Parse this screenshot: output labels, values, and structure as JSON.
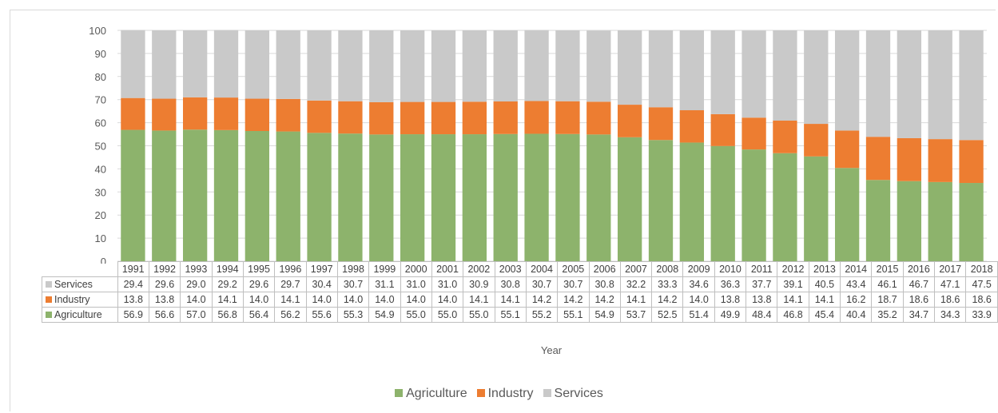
{
  "chart_data": {
    "type": "stacked-bar",
    "categories": [
      "1991",
      "1992",
      "1993",
      "1994",
      "1995",
      "1996",
      "1997",
      "1998",
      "1999",
      "2000",
      "2001",
      "2002",
      "2003",
      "2004",
      "2005",
      "2006",
      "2007",
      "2008",
      "2009",
      "2010",
      "2011",
      "2012",
      "2013",
      "2014",
      "2015",
      "2016",
      "2017",
      "2018"
    ],
    "series": [
      {
        "name": "Agriculture",
        "color": "#8db36c",
        "values": [
          56.9,
          56.6,
          57.0,
          56.8,
          56.4,
          56.2,
          55.6,
          55.3,
          54.9,
          55.0,
          55.0,
          55.0,
          55.1,
          55.2,
          55.1,
          54.9,
          53.7,
          52.5,
          51.4,
          49.9,
          48.4,
          46.8,
          45.4,
          40.4,
          35.2,
          34.7,
          34.3,
          33.9
        ]
      },
      {
        "name": "Industry",
        "color": "#ed7d31",
        "values": [
          13.8,
          13.8,
          14.0,
          14.1,
          14.0,
          14.1,
          14.0,
          14.0,
          14.0,
          14.0,
          14.0,
          14.1,
          14.1,
          14.2,
          14.2,
          14.2,
          14.1,
          14.2,
          14.0,
          13.8,
          13.8,
          14.1,
          14.1,
          16.2,
          18.7,
          18.6,
          18.6,
          18.6
        ]
      },
      {
        "name": "Services",
        "color": "#c9c9c9",
        "values": [
          29.4,
          29.6,
          29.0,
          29.2,
          29.6,
          29.7,
          30.4,
          30.7,
          31.1,
          31.0,
          31.0,
          30.9,
          30.8,
          30.7,
          30.7,
          30.8,
          32.2,
          33.3,
          34.6,
          36.3,
          37.7,
          39.1,
          40.5,
          43.4,
          46.1,
          46.7,
          47.1,
          47.5
        ]
      }
    ],
    "table_row_order": [
      "Services",
      "Industry",
      "Agriculture"
    ],
    "value_labels": {
      "Services": [
        "29.4",
        "29.6",
        "29.0",
        "29.2",
        "29.6",
        "29.7",
        "30.4",
        "30.7",
        "31.1",
        "31.0",
        "31.0",
        "30.9",
        "30.8",
        "30.7",
        "30.7",
        "30.8",
        "32.2",
        "33.3",
        "34.6",
        "36.3",
        "37.7",
        "39.1",
        "40.5",
        "43.4",
        "46.1",
        "46.7",
        "47.1",
        "47.5"
      ],
      "Industry": [
        "13.8",
        "13.8",
        "14.0",
        "14.1",
        "14.0",
        "14.1",
        "14.0",
        "14.0",
        "14.0",
        "14.0",
        "14.0",
        "14.1",
        "14.1",
        "14.2",
        "14.2",
        "14.2",
        "14.1",
        "14.2",
        "14.0",
        "13.8",
        "13.8",
        "14.1",
        "14.1",
        "16.2",
        "18.7",
        "18.6",
        "18.6",
        "18.6"
      ],
      "Agriculture": [
        "56.9",
        "56.6",
        "57.0",
        "56.8",
        "56.4",
        "56.2",
        "55.6",
        "55.3",
        "54.9",
        "55.0",
        "55.0",
        "55.0",
        "55.1",
        "55.2",
        "55.1",
        "54.9",
        "53.7",
        "52.5",
        "51.4",
        "49.9",
        "48.4",
        "46.8",
        "45.4",
        "40.4",
        "35.2",
        "34.7",
        "34.3",
        "33.9"
      ]
    },
    "y_ticks": [
      "0",
      "10",
      "20",
      "30",
      "40",
      "50",
      "60",
      "70",
      "80",
      "90",
      "100"
    ],
    "ylim": [
      0,
      100
    ],
    "xlabel": "Year",
    "ylabel": "",
    "title": "",
    "grid": true,
    "legend": {
      "position": "bottom",
      "items": [
        "Agriculture",
        "Industry",
        "Services"
      ]
    }
  }
}
